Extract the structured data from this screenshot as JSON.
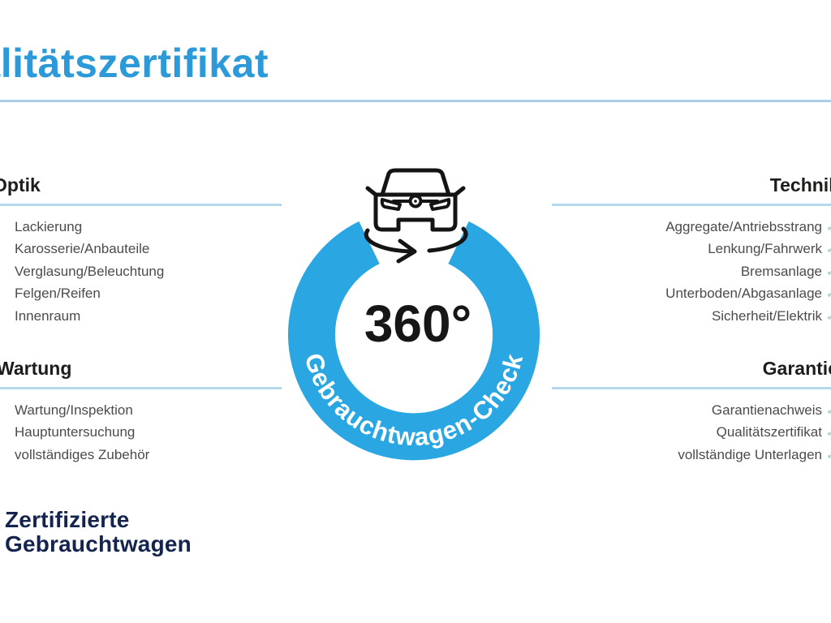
{
  "header": {
    "title": "Qualitätszertifikat"
  },
  "badge": {
    "degrees": "360°",
    "ring_text": "Gebrauchtwagen-Check",
    "icon": "car-front-rotation-icon"
  },
  "sections": {
    "optik": {
      "title": "Optik",
      "items": [
        "Lackierung",
        "Karosserie/Anbauteile",
        "Verglasung/Beleuchtung",
        "Felgen/Reifen",
        "Innenraum"
      ]
    },
    "technik": {
      "title": "Technik",
      "items": [
        "Aggregate/Antriebsstrang",
        "Lenkung/Fahrwerk",
        "Bremsanlage",
        "Unterboden/Abgasanlage",
        "Sicherheit/Elektrik"
      ]
    },
    "wartung": {
      "title": "Wartung",
      "items": [
        "Wartung/Inspektion",
        "Hauptuntersuchung",
        "vollständiges Zubehör"
      ]
    },
    "garantie": {
      "title": "Garantie",
      "items": [
        "Garantienachweis",
        "Qualitätszertifikat",
        "vollständige Unterlagen"
      ]
    }
  },
  "brand": {
    "line1": "Zertifizierte",
    "line2": "Gebrauchtwagen"
  },
  "icons": {
    "check": "✓"
  },
  "colors": {
    "title_blue": "#2c99d9",
    "ring_blue": "#2aa6e2",
    "divider_blue": "#aacdea",
    "underline_blue": "#b5d7eb",
    "brand_navy": "#14244e",
    "heading_dark": "#1d1d1b",
    "item_gray": "#4b4b4b",
    "check_gray": "#b9cdd6"
  }
}
